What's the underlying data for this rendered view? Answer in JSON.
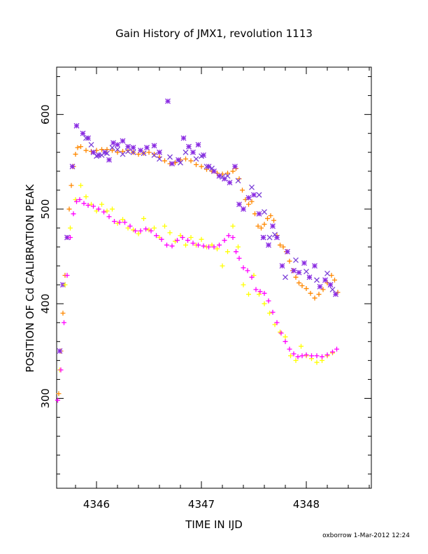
{
  "chart_data": {
    "type": "scatter",
    "title": "Gain History of JMX1, revolution 1113",
    "xlabel": "TIME IN IJD",
    "ylabel": "POSITION OF Cd CALIBRATION PEAK",
    "xlim": [
      4345.62,
      4348.62
    ],
    "ylim": [
      205,
      650
    ],
    "x_ticks": [
      4346,
      4347,
      4348
    ],
    "x_tick_labels": [
      "4346",
      "4347",
      "4348"
    ],
    "y_ticks": [
      300,
      400,
      500,
      600
    ],
    "y_tick_labels": [
      "300",
      "400",
      "500",
      "600"
    ],
    "grid": false,
    "footer": "oxborrow  1-Mar-2012 12:24",
    "series": [
      {
        "color": "#ff8800",
        "marker": "plus",
        "values": [
          [
            4345.64,
            305
          ],
          [
            4345.66,
            350
          ],
          [
            4345.68,
            390
          ],
          [
            4345.7,
            430
          ],
          [
            4345.72,
            470
          ],
          [
            4345.74,
            500
          ],
          [
            4345.76,
            525
          ],
          [
            4345.78,
            545
          ],
          [
            4345.8,
            558
          ],
          [
            4345.82,
            565
          ],
          [
            4345.85,
            566
          ],
          [
            4345.9,
            562
          ],
          [
            4345.95,
            561
          ],
          [
            4346.0,
            562
          ],
          [
            4346.05,
            563
          ],
          [
            4346.1,
            563
          ],
          [
            4346.15,
            562
          ],
          [
            4346.2,
            560
          ],
          [
            4346.25,
            561
          ],
          [
            4346.3,
            562
          ],
          [
            4346.35,
            560
          ],
          [
            4346.4,
            558
          ],
          [
            4346.45,
            559
          ],
          [
            4346.5,
            560
          ],
          [
            4346.55,
            558
          ],
          [
            4346.6,
            555
          ],
          [
            4346.65,
            551
          ],
          [
            4346.7,
            548
          ],
          [
            4346.75,
            549
          ],
          [
            4346.8,
            552
          ],
          [
            4346.85,
            553
          ],
          [
            4346.9,
            551
          ],
          [
            4346.95,
            547
          ],
          [
            4347.0,
            545
          ],
          [
            4347.05,
            542
          ],
          [
            4347.1,
            540
          ],
          [
            4347.15,
            538
          ],
          [
            4347.2,
            537
          ],
          [
            4347.25,
            538
          ],
          [
            4347.3,
            540
          ],
          [
            4347.33,
            543
          ],
          [
            4347.36,
            532
          ],
          [
            4347.39,
            520
          ],
          [
            4347.42,
            510
          ],
          [
            4347.45,
            505
          ],
          [
            4347.48,
            508
          ],
          [
            4347.51,
            495
          ],
          [
            4347.54,
            482
          ],
          [
            4347.57,
            480
          ],
          [
            4347.6,
            484
          ],
          [
            4347.63,
            490
          ],
          [
            4347.66,
            493
          ],
          [
            4347.69,
            488
          ],
          [
            4347.72,
            472
          ],
          [
            4347.75,
            462
          ],
          [
            4347.78,
            460
          ],
          [
            4347.81,
            455
          ],
          [
            4347.84,
            445
          ],
          [
            4347.87,
            435
          ],
          [
            4347.9,
            428
          ],
          [
            4347.93,
            422
          ],
          [
            4347.96,
            419
          ],
          [
            4348.0,
            416
          ],
          [
            4348.04,
            411
          ],
          [
            4348.08,
            406
          ],
          [
            4348.12,
            410
          ],
          [
            4348.16,
            415
          ],
          [
            4348.2,
            422
          ],
          [
            4348.24,
            430
          ],
          [
            4348.27,
            425
          ],
          [
            4348.3,
            412
          ]
        ]
      },
      {
        "color": "#8a2be2",
        "marker": "asterisk",
        "values": [
          [
            4345.65,
            350
          ],
          [
            4345.68,
            420
          ],
          [
            4345.72,
            470
          ],
          [
            4345.77,
            545
          ],
          [
            4345.81,
            588
          ],
          [
            4345.87,
            580
          ],
          [
            4345.92,
            575
          ],
          [
            4345.97,
            560
          ],
          [
            4346.02,
            557
          ],
          [
            4346.08,
            560
          ],
          [
            4346.12,
            552
          ],
          [
            4346.16,
            570
          ],
          [
            4346.2,
            568
          ],
          [
            4346.25,
            572
          ],
          [
            4346.3,
            566
          ],
          [
            4346.35,
            565
          ],
          [
            4346.42,
            562
          ],
          [
            4346.48,
            565
          ],
          [
            4346.55,
            567
          ],
          [
            4346.6,
            560
          ],
          [
            4346.68,
            614
          ],
          [
            4346.72,
            548
          ],
          [
            4346.78,
            552
          ],
          [
            4346.83,
            575
          ],
          [
            4346.88,
            566
          ],
          [
            4346.92,
            560
          ],
          [
            4346.97,
            568
          ],
          [
            4347.02,
            557
          ],
          [
            4347.07,
            545
          ],
          [
            4347.12,
            540
          ],
          [
            4347.17,
            535
          ],
          [
            4347.22,
            532
          ],
          [
            4347.27,
            528
          ],
          [
            4347.32,
            545
          ],
          [
            4347.36,
            505
          ],
          [
            4347.4,
            500
          ],
          [
            4347.45,
            512
          ],
          [
            4347.5,
            515
          ],
          [
            4347.55,
            495
          ],
          [
            4347.59,
            470
          ],
          [
            4347.64,
            462
          ],
          [
            4347.68,
            482
          ],
          [
            4347.72,
            470
          ],
          [
            4347.77,
            440
          ],
          [
            4347.82,
            455
          ],
          [
            4347.88,
            435
          ],
          [
            4347.93,
            433
          ],
          [
            4347.98,
            443
          ],
          [
            4348.03,
            428
          ],
          [
            4348.08,
            440
          ],
          [
            4348.13,
            418
          ],
          [
            4348.18,
            425
          ],
          [
            4348.23,
            420
          ],
          [
            4348.28,
            410
          ]
        ]
      },
      {
        "color": "#ffff00",
        "marker": "plus",
        "values": [
          [
            4345.65,
            330
          ],
          [
            4345.7,
            420
          ],
          [
            4345.75,
            480
          ],
          [
            4345.8,
            510
          ],
          [
            4345.85,
            525
          ],
          [
            4345.9,
            513
          ],
          [
            4345.95,
            505
          ],
          [
            4346.0,
            498
          ],
          [
            4346.05,
            505
          ],
          [
            4346.1,
            498
          ],
          [
            4346.15,
            500
          ],
          [
            4346.2,
            485
          ],
          [
            4346.25,
            489
          ],
          [
            4346.3,
            480
          ],
          [
            4346.35,
            478
          ],
          [
            4346.4,
            474
          ],
          [
            4346.45,
            490
          ],
          [
            4346.5,
            478
          ],
          [
            4346.55,
            480
          ],
          [
            4346.6,
            470
          ],
          [
            4346.65,
            482
          ],
          [
            4346.7,
            475
          ],
          [
            4346.75,
            466
          ],
          [
            4346.8,
            472
          ],
          [
            4346.85,
            462
          ],
          [
            4346.9,
            470
          ],
          [
            4346.95,
            462
          ],
          [
            4347.0,
            468
          ],
          [
            4347.05,
            460
          ],
          [
            4347.1,
            462
          ],
          [
            4347.15,
            458
          ],
          [
            4347.2,
            440
          ],
          [
            4347.25,
            455
          ],
          [
            4347.3,
            482
          ],
          [
            4347.35,
            460
          ],
          [
            4347.4,
            420
          ],
          [
            4347.45,
            410
          ],
          [
            4347.5,
            430
          ],
          [
            4347.55,
            410
          ],
          [
            4347.6,
            400
          ],
          [
            4347.65,
            390
          ],
          [
            4347.7,
            378
          ],
          [
            4347.75,
            370
          ],
          [
            4347.8,
            365
          ],
          [
            4347.85,
            345
          ],
          [
            4347.9,
            340
          ],
          [
            4347.95,
            355
          ],
          [
            4348.0,
            345
          ],
          [
            4348.05,
            342
          ],
          [
            4348.1,
            338
          ],
          [
            4348.15,
            340
          ],
          [
            4348.2,
            345
          ],
          [
            4348.25,
            348
          ]
        ]
      },
      {
        "color": "#ff00ff",
        "marker": "plus",
        "values": [
          [
            4345.63,
            298
          ],
          [
            4345.66,
            330
          ],
          [
            4345.69,
            380
          ],
          [
            4345.72,
            430
          ],
          [
            4345.75,
            470
          ],
          [
            4345.78,
            495
          ],
          [
            4345.81,
            508
          ],
          [
            4345.84,
            510
          ],
          [
            4345.88,
            506
          ],
          [
            4345.92,
            504
          ],
          [
            4345.97,
            503
          ],
          [
            4346.02,
            500
          ],
          [
            4346.07,
            497
          ],
          [
            4346.12,
            492
          ],
          [
            4346.17,
            487
          ],
          [
            4346.22,
            486
          ],
          [
            4346.27,
            486
          ],
          [
            4346.32,
            482
          ],
          [
            4346.37,
            477
          ],
          [
            4346.42,
            477
          ],
          [
            4346.47,
            479
          ],
          [
            4346.52,
            477
          ],
          [
            4346.57,
            472
          ],
          [
            4346.62,
            468
          ],
          [
            4346.67,
            462
          ],
          [
            4346.72,
            461
          ],
          [
            4346.77,
            467
          ],
          [
            4346.82,
            470
          ],
          [
            4346.87,
            467
          ],
          [
            4346.92,
            464
          ],
          [
            4346.97,
            462
          ],
          [
            4347.02,
            461
          ],
          [
            4347.07,
            460
          ],
          [
            4347.12,
            460
          ],
          [
            4347.17,
            462
          ],
          [
            4347.22,
            467
          ],
          [
            4347.26,
            472
          ],
          [
            4347.3,
            470
          ],
          [
            4347.33,
            455
          ],
          [
            4347.36,
            448
          ],
          [
            4347.4,
            438
          ],
          [
            4347.44,
            435
          ],
          [
            4347.48,
            428
          ],
          [
            4347.52,
            415
          ],
          [
            4347.56,
            413
          ],
          [
            4347.6,
            411
          ],
          [
            4347.64,
            403
          ],
          [
            4347.68,
            391
          ],
          [
            4347.72,
            380
          ],
          [
            4347.76,
            369
          ],
          [
            4347.8,
            360
          ],
          [
            4347.84,
            352
          ],
          [
            4347.88,
            347
          ],
          [
            4347.92,
            344
          ],
          [
            4347.96,
            345
          ],
          [
            4348.0,
            346
          ],
          [
            4348.05,
            345
          ],
          [
            4348.1,
            345
          ],
          [
            4348.15,
            344
          ],
          [
            4348.2,
            346
          ],
          [
            4348.25,
            349
          ],
          [
            4348.29,
            352
          ]
        ]
      },
      {
        "color": "#7b3fd8",
        "marker": "cross",
        "values": [
          [
            4345.9,
            575
          ],
          [
            4345.95,
            568
          ],
          [
            4346.0,
            556
          ],
          [
            4346.05,
            557
          ],
          [
            4346.1,
            559
          ],
          [
            4346.15,
            565
          ],
          [
            4346.2,
            563
          ],
          [
            4346.25,
            558
          ],
          [
            4346.3,
            561
          ],
          [
            4346.35,
            560
          ],
          [
            4346.45,
            559
          ],
          [
            4346.55,
            557
          ],
          [
            4346.6,
            553
          ],
          [
            4346.7,
            555
          ],
          [
            4346.8,
            549
          ],
          [
            4346.85,
            560
          ],
          [
            4346.95,
            553
          ],
          [
            4347.0,
            556
          ],
          [
            4347.05,
            545
          ],
          [
            4347.1,
            543
          ],
          [
            4347.2,
            534
          ],
          [
            4347.25,
            535
          ],
          [
            4347.35,
            530
          ],
          [
            4347.48,
            523
          ],
          [
            4347.55,
            515
          ],
          [
            4347.6,
            497
          ],
          [
            4347.65,
            470
          ],
          [
            4347.7,
            473
          ],
          [
            4347.8,
            428
          ],
          [
            4347.9,
            446
          ],
          [
            4348.0,
            434
          ],
          [
            4348.1,
            425
          ],
          [
            4348.2,
            432
          ],
          [
            4348.25,
            415
          ]
        ]
      }
    ]
  }
}
